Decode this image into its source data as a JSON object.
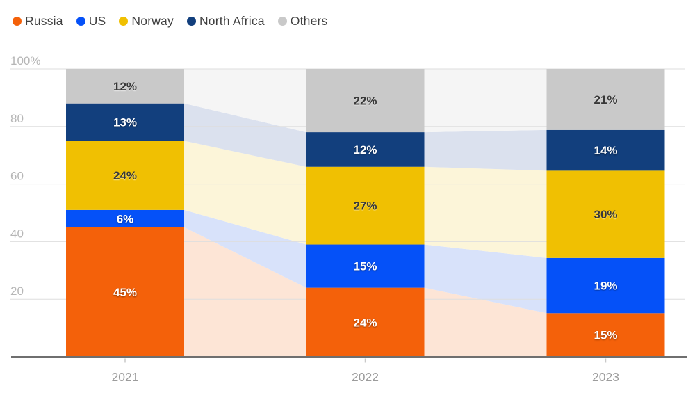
{
  "chart_data": {
    "type": "bar",
    "variant": "percent-stacked-with-flow-bands",
    "categories": [
      "2021",
      "2022",
      "2023"
    ],
    "stack_order_bottom_to_top": [
      "Russia",
      "US",
      "Norway",
      "North Africa",
      "Others"
    ],
    "series": [
      {
        "name": "Russia",
        "color": "#f4610a",
        "flow_color": "#fde5d6",
        "label_color": "#ffffff",
        "label_style": "light",
        "values": [
          45,
          24,
          15
        ]
      },
      {
        "name": "US",
        "color": "#0551f8",
        "flow_color": "#d8e2fa",
        "label_color": "#ffffff",
        "label_style": "light",
        "values": [
          6,
          15,
          19
        ]
      },
      {
        "name": "Norway",
        "color": "#f0c002",
        "flow_color": "#fcf5d9",
        "label_color": "#383838",
        "label_style": "dark",
        "values": [
          24,
          27,
          30
        ]
      },
      {
        "name": "North Africa",
        "color": "#123f7d",
        "flow_color": "#dbe1ee",
        "label_color": "#ffffff",
        "label_style": "light",
        "values": [
          13,
          12,
          14
        ]
      },
      {
        "name": "Others",
        "color": "#c9c9c9",
        "flow_color": "#f5f5f5",
        "label_color": "#383838",
        "label_style": "dark",
        "values": [
          12,
          22,
          21
        ]
      }
    ],
    "value_suffix": "%",
    "segment_labels": [
      [
        "45%",
        "24%",
        "15%"
      ],
      [
        "6%",
        "15%",
        "19%"
      ],
      [
        "24%",
        "27%",
        "30%"
      ],
      [
        "13%",
        "12%",
        "14%"
      ],
      [
        "12%",
        "22%",
        "21%"
      ]
    ],
    "y_axis": {
      "tick_labels": [
        "100%",
        "80",
        "60",
        "40",
        "20"
      ],
      "tick_values": [
        100,
        80,
        60,
        40,
        20
      ],
      "range": [
        0,
        100
      ],
      "grid": true,
      "grid_color": "#dedede",
      "tick_label_color": "#b6b6b6"
    },
    "x_axis": {
      "tick_labels": [
        "2021",
        "2022",
        "2023"
      ],
      "line_color": "#6f6f6f",
      "tick_color": "#c9c9c9",
      "tick_label_color": "#9c9c9c"
    },
    "legend_position": "top-left",
    "title": "",
    "xlabel": "",
    "ylabel": ""
  },
  "legend": {
    "items": [
      {
        "label": "Russia",
        "color": "#f4610a"
      },
      {
        "label": "US",
        "color": "#0551f8"
      },
      {
        "label": "Norway",
        "color": "#f0c002"
      },
      {
        "label": "North Africa",
        "color": "#123f7d"
      },
      {
        "label": "Others",
        "color": "#c9c9c9"
      }
    ]
  }
}
